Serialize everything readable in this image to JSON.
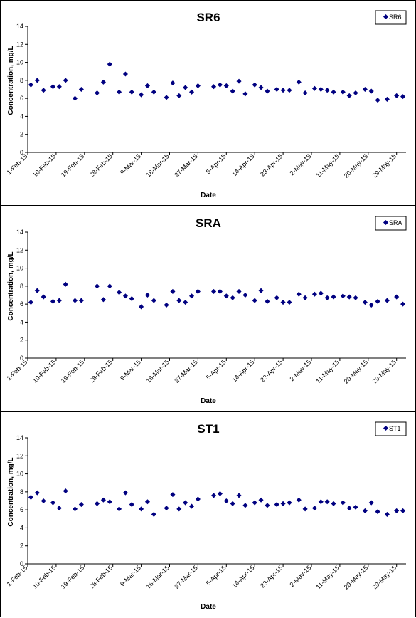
{
  "chart_data": [
    {
      "type": "scatter",
      "title": "SR6",
      "xlabel": "Date",
      "ylabel": "Concentration, mg/L",
      "ylim": [
        0,
        14
      ],
      "yticks": [
        0,
        2,
        4,
        6,
        8,
        10,
        12,
        14
      ],
      "xlim": [
        "1-Feb-15",
        "1-Jun-15"
      ],
      "xtick_labels": [
        "1-Feb-15",
        "10-Feb-15",
        "19-Feb-15",
        "28-Feb-15",
        "9-Mar-15",
        "18-Mar-15",
        "27-Mar-15",
        "5-Apr-15",
        "14-Apr-15",
        "23-Apr-15",
        "2-May-15",
        "11-May-15",
        "20-May-15",
        "29-May-15"
      ],
      "legend": "top-right",
      "grid": false,
      "marker_color": "#000080",
      "series": [
        {
          "name": "SR6",
          "points": [
            [
              "2-Feb-15",
              7.5
            ],
            [
              "4-Feb-15",
              8.0
            ],
            [
              "6-Feb-15",
              6.9
            ],
            [
              "9-Feb-15",
              7.3
            ],
            [
              "11-Feb-15",
              7.3
            ],
            [
              "13-Feb-15",
              8.0
            ],
            [
              "16-Feb-15",
              6.0
            ],
            [
              "18-Feb-15",
              7.0
            ],
            [
              "23-Feb-15",
              6.6
            ],
            [
              "25-Feb-15",
              7.8
            ],
            [
              "27-Feb-15",
              9.8
            ],
            [
              "2-Mar-15",
              6.7
            ],
            [
              "4-Mar-15",
              8.7
            ],
            [
              "6-Mar-15",
              6.7
            ],
            [
              "9-Mar-15",
              6.4
            ],
            [
              "11-Mar-15",
              7.4
            ],
            [
              "13-Mar-15",
              6.7
            ],
            [
              "17-Mar-15",
              6.1
            ],
            [
              "19-Mar-15",
              7.7
            ],
            [
              "21-Mar-15",
              6.3
            ],
            [
              "23-Mar-15",
              7.2
            ],
            [
              "25-Mar-15",
              6.7
            ],
            [
              "27-Mar-15",
              7.4
            ],
            [
              "1-Apr-15",
              7.3
            ],
            [
              "3-Apr-15",
              7.5
            ],
            [
              "5-Apr-15",
              7.4
            ],
            [
              "7-Apr-15",
              6.8
            ],
            [
              "9-Apr-15",
              7.9
            ],
            [
              "11-Apr-15",
              6.5
            ],
            [
              "14-Apr-15",
              7.5
            ],
            [
              "16-Apr-15",
              7.2
            ],
            [
              "18-Apr-15",
              6.8
            ],
            [
              "21-Apr-15",
              7.0
            ],
            [
              "23-Apr-15",
              6.9
            ],
            [
              "25-Apr-15",
              6.9
            ],
            [
              "28-Apr-15",
              7.8
            ],
            [
              "30-Apr-15",
              6.6
            ],
            [
              "3-May-15",
              7.1
            ],
            [
              "5-May-15",
              7.0
            ],
            [
              "7-May-15",
              6.9
            ],
            [
              "9-May-15",
              6.7
            ],
            [
              "12-May-15",
              6.7
            ],
            [
              "14-May-15",
              6.3
            ],
            [
              "16-May-15",
              6.6
            ],
            [
              "19-May-15",
              7.0
            ],
            [
              "21-May-15",
              6.8
            ],
            [
              "23-May-15",
              5.8
            ],
            [
              "26-May-15",
              5.9
            ],
            [
              "29-May-15",
              6.3
            ],
            [
              "31-May-15",
              6.2
            ]
          ]
        }
      ]
    },
    {
      "type": "scatter",
      "title": "SRA",
      "xlabel": "Date",
      "ylabel": "Concentration, mg/L",
      "ylim": [
        0,
        14
      ],
      "yticks": [
        0,
        2,
        4,
        6,
        8,
        10,
        12,
        14
      ],
      "xlim": [
        "1-Feb-15",
        "1-Jun-15"
      ],
      "xtick_labels": [
        "1-Feb-15",
        "10-Feb-15",
        "19-Feb-15",
        "28-Feb-15",
        "9-Mar-15",
        "18-Mar-15",
        "27-Mar-15",
        "5-Apr-15",
        "14-Apr-15",
        "23-Apr-15",
        "2-May-15",
        "11-May-15",
        "20-May-15",
        "29-May-15"
      ],
      "legend": "top-right",
      "grid": false,
      "marker_color": "#000080",
      "series": [
        {
          "name": "SRA",
          "points": [
            [
              "2-Feb-15",
              6.2
            ],
            [
              "4-Feb-15",
              7.5
            ],
            [
              "6-Feb-15",
              6.8
            ],
            [
              "9-Feb-15",
              6.3
            ],
            [
              "11-Feb-15",
              6.4
            ],
            [
              "13-Feb-15",
              8.2
            ],
            [
              "16-Feb-15",
              6.4
            ],
            [
              "18-Feb-15",
              6.4
            ],
            [
              "23-Feb-15",
              8.0
            ],
            [
              "25-Feb-15",
              6.5
            ],
            [
              "27-Feb-15",
              8.0
            ],
            [
              "2-Mar-15",
              7.3
            ],
            [
              "4-Mar-15",
              6.9
            ],
            [
              "6-Mar-15",
              6.6
            ],
            [
              "9-Mar-15",
              5.7
            ],
            [
              "11-Mar-15",
              7.0
            ],
            [
              "13-Mar-15",
              6.4
            ],
            [
              "17-Mar-15",
              5.9
            ],
            [
              "19-Mar-15",
              7.4
            ],
            [
              "21-Mar-15",
              6.4
            ],
            [
              "23-Mar-15",
              6.2
            ],
            [
              "25-Mar-15",
              6.9
            ],
            [
              "27-Mar-15",
              7.4
            ],
            [
              "1-Apr-15",
              7.4
            ],
            [
              "3-Apr-15",
              7.4
            ],
            [
              "5-Apr-15",
              6.9
            ],
            [
              "7-Apr-15",
              6.7
            ],
            [
              "9-Apr-15",
              7.4
            ],
            [
              "11-Apr-15",
              7.0
            ],
            [
              "14-Apr-15",
              6.4
            ],
            [
              "16-Apr-15",
              7.5
            ],
            [
              "18-Apr-15",
              6.3
            ],
            [
              "21-Apr-15",
              6.7
            ],
            [
              "23-Apr-15",
              6.2
            ],
            [
              "25-Apr-15",
              6.2
            ],
            [
              "28-Apr-15",
              7.1
            ],
            [
              "30-Apr-15",
              6.7
            ],
            [
              "3-May-15",
              7.1
            ],
            [
              "5-May-15",
              7.2
            ],
            [
              "7-May-15",
              6.7
            ],
            [
              "9-May-15",
              6.8
            ],
            [
              "12-May-15",
              6.9
            ],
            [
              "14-May-15",
              6.8
            ],
            [
              "16-May-15",
              6.7
            ],
            [
              "19-May-15",
              6.2
            ],
            [
              "21-May-15",
              5.9
            ],
            [
              "23-May-15",
              6.3
            ],
            [
              "26-May-15",
              6.4
            ],
            [
              "29-May-15",
              6.8
            ],
            [
              "31-May-15",
              6.0
            ]
          ]
        }
      ]
    },
    {
      "type": "scatter",
      "title": "ST1",
      "xlabel": "Date",
      "ylabel": "Concentration, mg/L",
      "ylim": [
        0,
        14
      ],
      "yticks": [
        0,
        2,
        4,
        6,
        8,
        10,
        12,
        14
      ],
      "xlim": [
        "1-Feb-15",
        "1-Jun-15"
      ],
      "xtick_labels": [
        "1-Feb-15",
        "10-Feb-15",
        "19-Feb-15",
        "28-Feb-15",
        "9-Mar-15",
        "18-Mar-15",
        "27-Mar-15",
        "5-Apr-15",
        "14-Apr-15",
        "23-Apr-15",
        "2-May-15",
        "11-May-15",
        "20-May-15",
        "29-May-15"
      ],
      "legend": "top-right",
      "grid": false,
      "marker_color": "#000080",
      "series": [
        {
          "name": "ST1",
          "points": [
            [
              "2-Feb-15",
              7.4
            ],
            [
              "4-Feb-15",
              7.9
            ],
            [
              "6-Feb-15",
              7.0
            ],
            [
              "9-Feb-15",
              6.8
            ],
            [
              "11-Feb-15",
              6.2
            ],
            [
              "13-Feb-15",
              8.1
            ],
            [
              "16-Feb-15",
              6.1
            ],
            [
              "18-Feb-15",
              6.6
            ],
            [
              "23-Feb-15",
              6.7
            ],
            [
              "25-Feb-15",
              7.1
            ],
            [
              "27-Feb-15",
              6.9
            ],
            [
              "2-Mar-15",
              6.1
            ],
            [
              "4-Mar-15",
              7.9
            ],
            [
              "6-Mar-15",
              6.6
            ],
            [
              "9-Mar-15",
              6.1
            ],
            [
              "11-Mar-15",
              6.9
            ],
            [
              "13-Mar-15",
              5.5
            ],
            [
              "17-Mar-15",
              6.2
            ],
            [
              "19-Mar-15",
              7.7
            ],
            [
              "21-Mar-15",
              6.1
            ],
            [
              "23-Mar-15",
              6.8
            ],
            [
              "25-Mar-15",
              6.4
            ],
            [
              "27-Mar-15",
              7.2
            ],
            [
              "1-Apr-15",
              7.6
            ],
            [
              "3-Apr-15",
              7.8
            ],
            [
              "5-Apr-15",
              7.0
            ],
            [
              "7-Apr-15",
              6.7
            ],
            [
              "9-Apr-15",
              7.6
            ],
            [
              "11-Apr-15",
              6.5
            ],
            [
              "14-Apr-15",
              6.8
            ],
            [
              "16-Apr-15",
              7.1
            ],
            [
              "18-Apr-15",
              6.5
            ],
            [
              "21-Apr-15",
              6.6
            ],
            [
              "23-Apr-15",
              6.7
            ],
            [
              "25-Apr-15",
              6.8
            ],
            [
              "28-Apr-15",
              7.1
            ],
            [
              "30-Apr-15",
              6.1
            ],
            [
              "3-May-15",
              6.2
            ],
            [
              "5-May-15",
              6.9
            ],
            [
              "7-May-15",
              6.9
            ],
            [
              "9-May-15",
              6.7
            ],
            [
              "12-May-15",
              6.8
            ],
            [
              "14-May-15",
              6.2
            ],
            [
              "16-May-15",
              6.3
            ],
            [
              "19-May-15",
              5.9
            ],
            [
              "21-May-15",
              6.8
            ],
            [
              "23-May-15",
              5.8
            ],
            [
              "26-May-15",
              5.5
            ],
            [
              "29-May-15",
              5.9
            ],
            [
              "31-May-15",
              5.9
            ]
          ]
        }
      ]
    }
  ]
}
